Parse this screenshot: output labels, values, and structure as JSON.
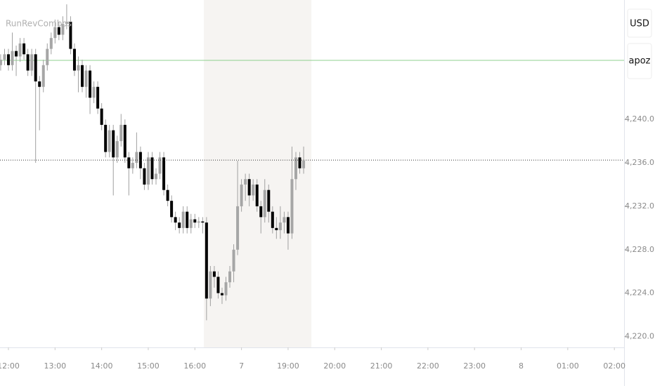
{
  "chart_data": {
    "type": "candlestick",
    "title": "RunRevCombos",
    "currency_label": "USD",
    "symbol_label": "apoz",
    "x": [
      -2,
      -1,
      0,
      1,
      2,
      3,
      4,
      5,
      6,
      7,
      8,
      9,
      10,
      11,
      12,
      13,
      14,
      15,
      16,
      17,
      18,
      19,
      20,
      21,
      22,
      23,
      24,
      25,
      26,
      27,
      28,
      29,
      30,
      31,
      32,
      33,
      34,
      35,
      36,
      37,
      38,
      39,
      40,
      41,
      42,
      43,
      44,
      45,
      46,
      47,
      48,
      49,
      50,
      51,
      52,
      53,
      54,
      55,
      56,
      57,
      58,
      59,
      60,
      61,
      62,
      63,
      64,
      65,
      66,
      67,
      68,
      69,
      70,
      71,
      72,
      73,
      74,
      75,
      76
    ],
    "open": [
      4245.0,
      4245.5,
      4246.0,
      4245.0,
      4246.3,
      4245.8,
      4247.0,
      4246.0,
      4244.5,
      4246.0,
      4243.5,
      4243.0,
      4245.0,
      4246.5,
      4247.5,
      4248.5,
      4247.8,
      4248.8,
      4249.0,
      4246.5,
      4244.5,
      4245.0,
      4243.0,
      4244.5,
      4242.0,
      4243.0,
      4241.0,
      4239.5,
      4237.0,
      4239.0,
      4236.5,
      4238.0,
      4239.5,
      4236.5,
      4235.5,
      4236.0,
      4237.0,
      4235.5,
      4234.0,
      4236.5,
      4234.5,
      4235.0,
      4236.5,
      4233.5,
      4232.5,
      4231.0,
      4230.5,
      4230.0,
      4231.5,
      4230.0,
      4230.8,
      4230.5,
      4230.6,
      4230.5,
      4223.5,
      4226.0,
      4225.5,
      4224.0,
      4223.8,
      4225.0,
      4226.0,
      4228.0,
      4232.0,
      4234.0,
      4234.5,
      4233.0,
      4234.0,
      4232.0,
      4231.0,
      4233.5,
      4231.5,
      4230.0,
      4229.8,
      4230.5,
      4231.0,
      4229.5,
      4234.5,
      4236.5,
      4235.5
    ],
    "high": [
      4246.0,
      4246.5,
      4246.5,
      4248.0,
      4246.8,
      4247.5,
      4247.5,
      4246.5,
      4246.5,
      4246.5,
      4244.0,
      4245.5,
      4247.0,
      4248.0,
      4249.2,
      4249.0,
      4249.5,
      4250.6,
      4249.5,
      4247.0,
      4245.8,
      4245.5,
      4245.0,
      4245.0,
      4243.5,
      4243.5,
      4241.5,
      4240.0,
      4239.5,
      4239.5,
      4238.5,
      4240.5,
      4240.0,
      4237.0,
      4236.5,
      4238.8,
      4237.5,
      4236.0,
      4237.0,
      4237.0,
      4235.5,
      4237.0,
      4237.0,
      4234.0,
      4233.0,
      4231.5,
      4231.0,
      4232.0,
      4232.0,
      4231.3,
      4231.3,
      4231.0,
      4231.0,
      4231.0,
      4226.5,
      4226.5,
      4226.0,
      4224.5,
      4225.5,
      4226.5,
      4228.5,
      4236.2,
      4234.5,
      4235.0,
      4235.0,
      4234.5,
      4234.5,
      4232.5,
      4234.5,
      4234.0,
      4232.0,
      4231.0,
      4232.0,
      4231.5,
      4231.5,
      4237.5,
      4237.0,
      4237.0,
      4237.5
    ],
    "low": [
      4244.5,
      4245.0,
      4244.5,
      4244.5,
      4244.0,
      4245.3,
      4245.5,
      4244.0,
      4244.0,
      4236.0,
      4239.0,
      4242.5,
      4244.5,
      4246.0,
      4247.0,
      4247.3,
      4247.3,
      4248.3,
      4246.0,
      4244.0,
      4242.5,
      4242.5,
      4242.0,
      4240.5,
      4241.5,
      4240.5,
      4239.0,
      4236.5,
      4236.5,
      4233.0,
      4236.0,
      4237.5,
      4236.0,
      4233.0,
      4235.0,
      4235.5,
      4234.5,
      4233.5,
      4233.5,
      4234.0,
      4234.0,
      4234.5,
      4233.0,
      4232.0,
      4230.5,
      4229.8,
      4229.5,
      4229.5,
      4229.5,
      4229.5,
      4230.0,
      4230.0,
      4229.5,
      4221.5,
      4222.8,
      4224.5,
      4223.5,
      4223.0,
      4223.3,
      4224.5,
      4225.0,
      4227.5,
      4231.5,
      4232.5,
      4232.0,
      4232.5,
      4231.5,
      4229.5,
      4230.5,
      4230.5,
      4229.5,
      4229.0,
      4229.0,
      4229.5,
      4228.0,
      4229.0,
      4233.5,
      4235.0,
      4235.0
    ],
    "close": [
      4245.5,
      4246.0,
      4245.0,
      4246.3,
      4245.8,
      4247.0,
      4246.0,
      4244.5,
      4246.0,
      4243.5,
      4243.0,
      4245.0,
      4246.5,
      4247.5,
      4248.5,
      4247.8,
      4248.8,
      4249.0,
      4246.5,
      4244.5,
      4245.0,
      4243.0,
      4244.5,
      4242.0,
      4243.0,
      4241.0,
      4239.5,
      4237.0,
      4239.0,
      4236.5,
      4238.0,
      4239.5,
      4236.5,
      4235.5,
      4236.0,
      4237.0,
      4235.5,
      4234.0,
      4236.5,
      4234.5,
      4235.0,
      4236.5,
      4233.5,
      4232.5,
      4231.0,
      4230.5,
      4230.0,
      4231.5,
      4230.0,
      4230.8,
      4230.5,
      4230.6,
      4230.5,
      4223.5,
      4226.0,
      4225.5,
      4224.0,
      4223.8,
      4225.0,
      4226.0,
      4228.0,
      4232.0,
      4234.0,
      4234.5,
      4233.0,
      4234.0,
      4232.0,
      4231.0,
      4233.5,
      4231.5,
      4230.0,
      4229.8,
      4230.5,
      4231.0,
      4229.5,
      4234.5,
      4236.5,
      4235.5,
      4236.2
    ],
    "up_color": "#a6a6a6",
    "down_color": "#000000",
    "wick_color": "#a0a0a0",
    "xlim": [
      -2.17,
      158.5
    ],
    "ylim": [
      4219,
      4251
    ],
    "xticks": [
      {
        "value": 0,
        "label": "12:00"
      },
      {
        "value": 12,
        "label": "13:00"
      },
      {
        "value": 24,
        "label": "14:00"
      },
      {
        "value": 36,
        "label": "15:00"
      },
      {
        "value": 48,
        "label": "16:00"
      },
      {
        "value": 60,
        "label": "7"
      },
      {
        "value": 72,
        "label": "19:00"
      },
      {
        "value": 84,
        "label": "20:00"
      },
      {
        "value": 96,
        "label": "21:00"
      },
      {
        "value": 108,
        "label": "22:00"
      },
      {
        "value": 120,
        "label": "23:00"
      },
      {
        "value": 132,
        "label": "8"
      },
      {
        "value": 144,
        "label": "01:00"
      },
      {
        "value": 156,
        "label": "02:00"
      }
    ],
    "yticks": [
      {
        "value": 4220,
        "label": "4,220.0"
      },
      {
        "value": 4224,
        "label": "4,224.0"
      },
      {
        "value": 4228,
        "label": "4,228.0"
      },
      {
        "value": 4232,
        "label": "4,232.0"
      },
      {
        "value": 4236,
        "label": "4,236.0"
      },
      {
        "value": 4240,
        "label": "4,240.0"
      }
    ],
    "shade": {
      "range": [
        50.3,
        78
      ],
      "color": "#f6f4f2"
    },
    "level_line": {
      "value": 4245.44,
      "color": "#8fd08f"
    },
    "last_price_line": {
      "value": 4236.25,
      "color": "#333333"
    }
  }
}
